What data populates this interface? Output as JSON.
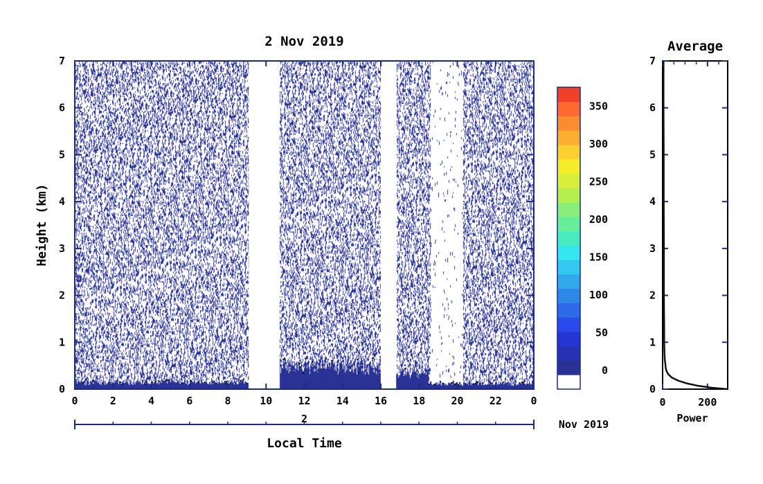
{
  "chart_data": [
    {
      "type": "heatmap",
      "title": "2 Nov 2019",
      "xlabel": "Local Time",
      "ylabel": "Height (km)",
      "x_ticks": [
        "0",
        "2",
        "4",
        "6",
        "8",
        "10",
        "12",
        "14",
        "16",
        "18",
        "20",
        "22",
        "0"
      ],
      "y_ticks": [
        "0",
        "1",
        "2",
        "3",
        "4",
        "5",
        "6",
        "7"
      ],
      "xlim": [
        0,
        24
      ],
      "ylim": [
        0,
        7
      ],
      "date_axis": {
        "day_label": "2",
        "month_label": "Nov 2019"
      },
      "data_gaps_hours": [
        [
          9.1,
          10.7
        ],
        [
          16.0,
          16.8
        ]
      ],
      "sparse_gap_hours": [
        [
          18.6,
          20.3
        ]
      ],
      "surface_layer": [
        {
          "x_range": [
            0,
            9.1
          ],
          "top_km": 0.15
        },
        {
          "x_range": [
            10.7,
            16.0
          ],
          "top_km": 0.5
        },
        {
          "x_range": [
            16.8,
            18.5
          ],
          "top_km": 0.35
        },
        {
          "x_range": [
            18.5,
            24
          ],
          "top_km": 0.12
        }
      ],
      "colorbar": {
        "ticks": [
          "0",
          "50",
          "100",
          "150",
          "200",
          "250",
          "300",
          "350"
        ],
        "min": -25,
        "max": 375,
        "step": 25,
        "colors": [
          "#ffffff",
          "#2a3296",
          "#2833b4",
          "#2636d2",
          "#2a4aee",
          "#2d6ae8",
          "#3088e6",
          "#33a8ea",
          "#33c8ee",
          "#36e6ee",
          "#48ecc0",
          "#66ee9a",
          "#8cee7a",
          "#b6ee50",
          "#d8ee3c",
          "#f4ee2a",
          "#fcd030",
          "#fcae30",
          "#fc8c30",
          "#fc6a30",
          "#f04028"
        ]
      },
      "colors": {
        "background_blue": "#2a3296",
        "frame": "#1a2a80",
        "contour": "#000000"
      }
    },
    {
      "type": "line",
      "title": "Average",
      "xlabel": "Power",
      "ylabel": "",
      "x_ticks": [
        "0",
        "200"
      ],
      "y_ticks": [
        "0",
        "1",
        "2",
        "3",
        "4",
        "5",
        "6",
        "7"
      ],
      "xlim": [
        0,
        290
      ],
      "ylim": [
        0,
        7
      ],
      "x": [
        290,
        220,
        160,
        110,
        70,
        40,
        25,
        18,
        14,
        12,
        10,
        9,
        8,
        7,
        7,
        6,
        6,
        5,
        5,
        4,
        4
      ],
      "y": [
        0.0,
        0.03,
        0.07,
        0.12,
        0.18,
        0.25,
        0.32,
        0.38,
        0.45,
        0.55,
        0.62,
        0.7,
        0.85,
        1.0,
        1.3,
        2.0,
        3.0,
        4.0,
        5.0,
        6.0,
        7.0
      ]
    }
  ]
}
